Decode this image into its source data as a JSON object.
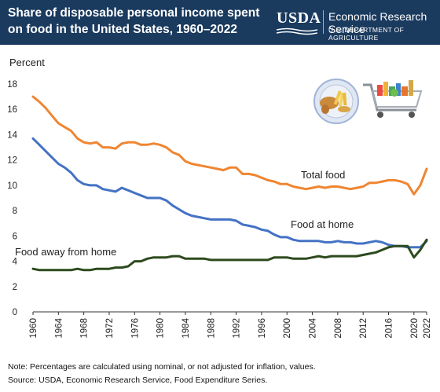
{
  "header": {
    "title_line1": "Share of disposable personal income spent",
    "title_line2": "on food in the United States, 1960–2022",
    "usda": "USDA",
    "agency": "Economic Research Service",
    "department": "U.S. DEPARTMENT OF AGRICULTURE",
    "background": "#1a3a5e"
  },
  "footer": {
    "note": "Note: Percentages are calculated using nominal, or not adjusted for inflation, values.",
    "source": "Source: USDA, Economic Research Service, Food Expenditure Series."
  },
  "icons": [
    "food-plate-icon",
    "shopping-cart-icon"
  ],
  "chart_data": {
    "type": "line",
    "ylabel": "Percent",
    "xlabel": "",
    "ylim": [
      0,
      18
    ],
    "yticks": [
      0,
      2,
      4,
      6,
      8,
      10,
      12,
      14,
      16,
      18
    ],
    "xlim": [
      1960,
      2022
    ],
    "xticks": [
      "1960",
      "1964",
      "1968",
      "1972",
      "1976",
      "1980",
      "1984",
      "1988",
      "1992",
      "1996",
      "2000",
      "2004",
      "2008",
      "2012",
      "2016",
      "2020",
      "2022"
    ],
    "grid": false,
    "x": [
      1960,
      1961,
      1962,
      1963,
      1964,
      1965,
      1966,
      1967,
      1968,
      1969,
      1970,
      1971,
      1972,
      1973,
      1974,
      1975,
      1976,
      1977,
      1978,
      1979,
      1980,
      1981,
      1982,
      1983,
      1984,
      1985,
      1986,
      1987,
      1988,
      1989,
      1990,
      1991,
      1992,
      1993,
      1994,
      1995,
      1996,
      1997,
      1998,
      1999,
      2000,
      2001,
      2002,
      2003,
      2004,
      2005,
      2006,
      2007,
      2008,
      2009,
      2010,
      2011,
      2012,
      2013,
      2014,
      2015,
      2016,
      2017,
      2018,
      2019,
      2020,
      2021,
      2022
    ],
    "series": [
      {
        "name": "Total food",
        "color": "#ef8632",
        "values": [
          17.0,
          16.6,
          16.1,
          15.5,
          14.9,
          14.6,
          14.3,
          13.7,
          13.4,
          13.3,
          13.4,
          13.0,
          13.0,
          12.9,
          13.3,
          13.4,
          13.4,
          13.2,
          13.2,
          13.3,
          13.2,
          13.0,
          12.6,
          12.4,
          11.9,
          11.7,
          11.6,
          11.5,
          11.4,
          11.3,
          11.2,
          11.4,
          11.4,
          10.9,
          10.9,
          10.8,
          10.6,
          10.4,
          10.3,
          10.1,
          10.1,
          9.9,
          9.8,
          9.7,
          9.8,
          9.9,
          9.8,
          9.9,
          9.9,
          9.8,
          9.7,
          9.8,
          9.9,
          10.2,
          10.2,
          10.3,
          10.4,
          10.4,
          10.3,
          10.1,
          9.3,
          10.0,
          11.3
        ]
      },
      {
        "name": "Food at home",
        "color": "#4472c4",
        "values": [
          13.7,
          13.2,
          12.7,
          12.2,
          11.7,
          11.4,
          11.0,
          10.4,
          10.1,
          10.0,
          10.0,
          9.7,
          9.6,
          9.5,
          9.8,
          9.6,
          9.4,
          9.2,
          9.0,
          9.0,
          9.0,
          8.8,
          8.4,
          8.1,
          7.8,
          7.6,
          7.5,
          7.4,
          7.3,
          7.3,
          7.3,
          7.3,
          7.2,
          6.9,
          6.8,
          6.7,
          6.5,
          6.4,
          6.1,
          5.9,
          5.9,
          5.7,
          5.6,
          5.6,
          5.6,
          5.6,
          5.5,
          5.5,
          5.6,
          5.5,
          5.5,
          5.4,
          5.4,
          5.5,
          5.6,
          5.5,
          5.3,
          5.2,
          5.2,
          5.1,
          5.1,
          5.1,
          5.6
        ]
      },
      {
        "name": "Food away from home",
        "color": "#2d4a1e",
        "values": [
          3.4,
          3.3,
          3.3,
          3.3,
          3.3,
          3.3,
          3.3,
          3.4,
          3.3,
          3.3,
          3.4,
          3.4,
          3.4,
          3.5,
          3.5,
          3.6,
          4.0,
          4.0,
          4.2,
          4.3,
          4.3,
          4.3,
          4.4,
          4.4,
          4.2,
          4.2,
          4.2,
          4.2,
          4.1,
          4.1,
          4.1,
          4.1,
          4.1,
          4.1,
          4.1,
          4.1,
          4.1,
          4.1,
          4.3,
          4.3,
          4.3,
          4.2,
          4.2,
          4.2,
          4.3,
          4.4,
          4.3,
          4.4,
          4.4,
          4.4,
          4.4,
          4.4,
          4.5,
          4.6,
          4.7,
          4.9,
          5.1,
          5.2,
          5.2,
          5.2,
          4.3,
          4.9,
          5.7
        ]
      }
    ]
  }
}
